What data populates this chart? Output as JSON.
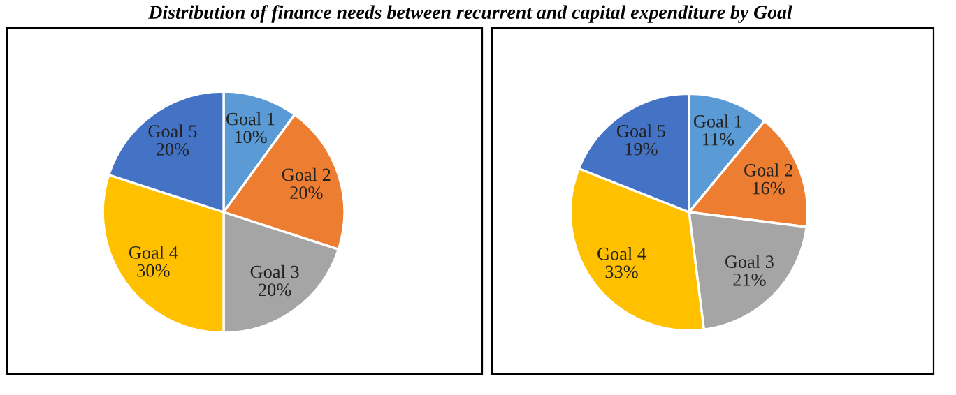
{
  "chart_data": [
    {
      "type": "pie",
      "title": "Distribution of finance needs between recurrent and capital expenditure by Goal",
      "categories": [
        "Goal 1",
        "Goal 2",
        "Goal 3",
        "Goal 4",
        "Goal 5"
      ],
      "values": [
        10,
        20,
        20,
        30,
        20
      ],
      "value_labels": [
        "10%",
        "20%",
        "20%",
        "30%",
        "20%"
      ],
      "colors": [
        "#5b9bd5",
        "#ed7d31",
        "#a5a5a5",
        "#ffc000",
        "#4472c4"
      ],
      "legend": false
    },
    {
      "type": "pie",
      "categories": [
        "Goal 1",
        "Goal 2",
        "Goal 3",
        "Goal 4",
        "Goal 5"
      ],
      "values": [
        11,
        16,
        21,
        33,
        19
      ],
      "value_labels": [
        "11%",
        "16%",
        "21%",
        "33%",
        "19%"
      ],
      "colors": [
        "#5b9bd5",
        "#ed7d31",
        "#a5a5a5",
        "#ffc000",
        "#4472c4"
      ],
      "legend": false
    }
  ]
}
